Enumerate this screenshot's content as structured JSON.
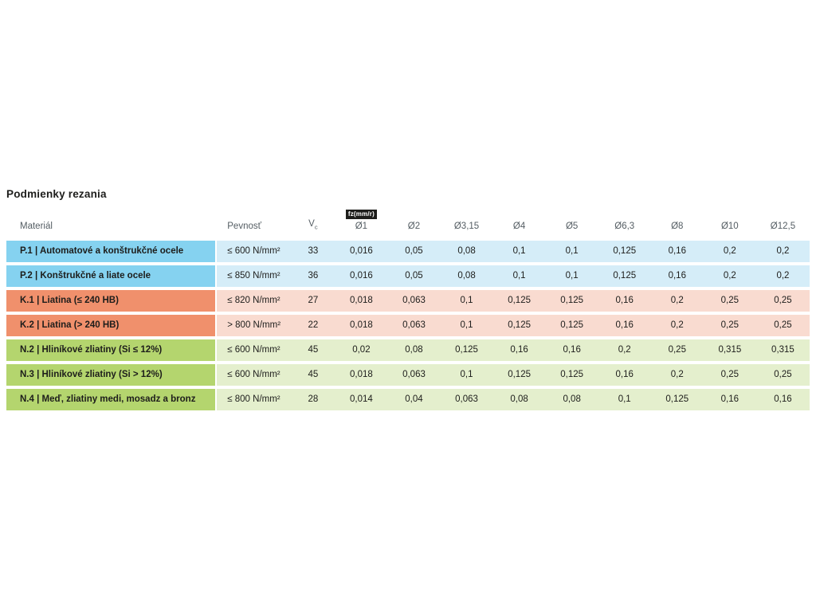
{
  "title": "Podmienky rezania",
  "table": {
    "badge": "fz(mm/r)",
    "headers": {
      "material": "Materiál",
      "pevnost": "Pevnosť",
      "vc_main": "V",
      "vc_sub": "c",
      "diameters": [
        "Ø1",
        "Ø2",
        "Ø3,15",
        "Ø4",
        "Ø5",
        "Ø6,3",
        "Ø8",
        "Ø10",
        "Ø12,5"
      ]
    },
    "colors": {
      "P": {
        "dark": "#85d2f0",
        "light": "#d5edf8"
      },
      "K": {
        "dark": "#f0906c",
        "light": "#f9dbd0"
      },
      "N": {
        "dark": "#b4d56e",
        "light": "#e4efcd"
      }
    },
    "rows": [
      {
        "group": "P",
        "material": "P.1 | Automatové a konštrukčné ocele",
        "pevnost": "≤ 600 N/mm²",
        "vc": "33",
        "values": [
          "0,016",
          "0,05",
          "0,08",
          "0,1",
          "0,1",
          "0,125",
          "0,16",
          "0,2",
          "0,2"
        ]
      },
      {
        "group": "P",
        "material": "P.2 | Konštrukčné a liate ocele",
        "pevnost": "≤ 850 N/mm²",
        "vc": "36",
        "values": [
          "0,016",
          "0,05",
          "0,08",
          "0,1",
          "0,1",
          "0,125",
          "0,16",
          "0,2",
          "0,2"
        ]
      },
      {
        "group": "K",
        "material": "K.1 | Liatina (≤ 240 HB)",
        "pevnost": "≤ 820 N/mm²",
        "vc": "27",
        "values": [
          "0,018",
          "0,063",
          "0,1",
          "0,125",
          "0,125",
          "0,16",
          "0,2",
          "0,25",
          "0,25"
        ]
      },
      {
        "group": "K",
        "material": "K.2 | Liatina (> 240 HB)",
        "pevnost": "> 800 N/mm²",
        "vc": "22",
        "values": [
          "0,018",
          "0,063",
          "0,1",
          "0,125",
          "0,125",
          "0,16",
          "0,2",
          "0,25",
          "0,25"
        ]
      },
      {
        "group": "N",
        "material": "N.2 | Hliníkové zliatiny (Si ≤ 12%)",
        "pevnost": "≤ 600 N/mm²",
        "vc": "45",
        "values": [
          "0,02",
          "0,08",
          "0,125",
          "0,16",
          "0,16",
          "0,2",
          "0,25",
          "0,315",
          "0,315"
        ]
      },
      {
        "group": "N",
        "material": "N.3 | Hliníkové zliatiny (Si > 12%)",
        "pevnost": "≤ 600 N/mm²",
        "vc": "45",
        "values": [
          "0,018",
          "0,063",
          "0,1",
          "0,125",
          "0,125",
          "0,16",
          "0,2",
          "0,25",
          "0,25"
        ]
      },
      {
        "group": "N",
        "material": "N.4 | Meď, zliatiny medi, mosadz a bronz",
        "pevnost": "≤ 800 N/mm²",
        "vc": "28",
        "values": [
          "0,014",
          "0,04",
          "0,063",
          "0,08",
          "0,08",
          "0,1",
          "0,125",
          "0,16",
          "0,16"
        ]
      }
    ]
  }
}
